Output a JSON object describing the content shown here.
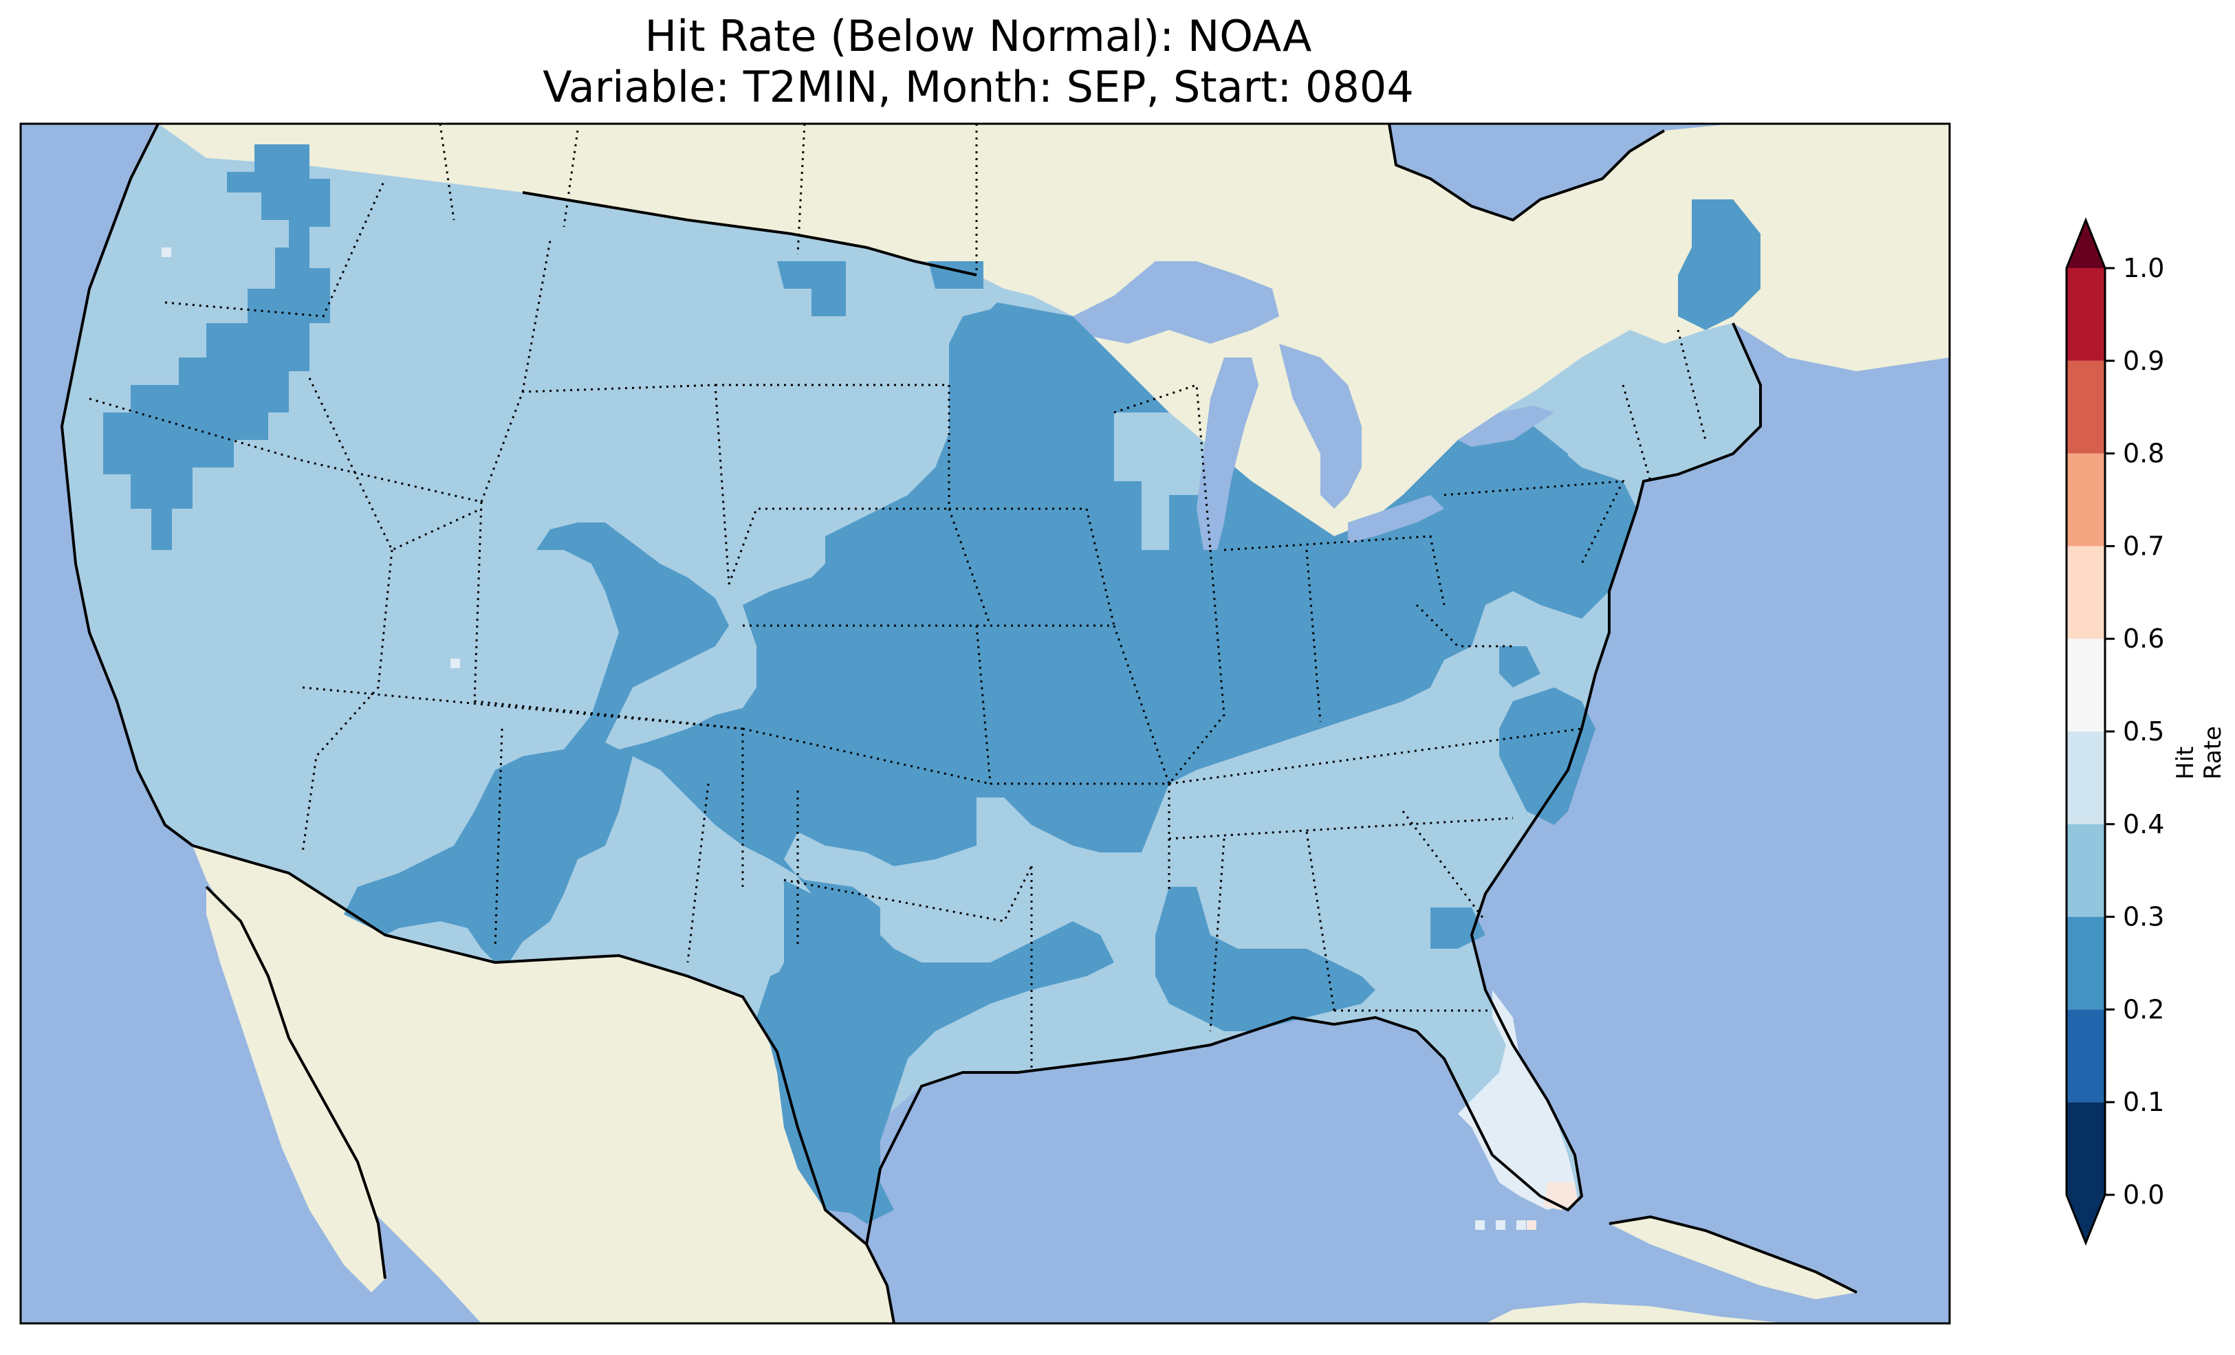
{
  "title": {
    "line1": "Hit Rate (Below Normal): NOAA",
    "line2": "Variable: T2MIN, Month: SEP, Start: 0804"
  },
  "colorbar": {
    "label": "Hit Rate",
    "ticks": [
      "0.0",
      "0.1",
      "0.2",
      "0.3",
      "0.4",
      "0.5",
      "0.6",
      "0.7",
      "0.8",
      "0.9",
      "1.0"
    ],
    "colors": [
      "#053061",
      "#2166ac",
      "#4393c3",
      "#92c5de",
      "#d1e5f0",
      "#f7f7f7",
      "#fddbc7",
      "#f4a582",
      "#d6604d",
      "#b2182b",
      "#67001f"
    ],
    "extend_low_color": "#053061",
    "extend_high_color": "#67001f"
  },
  "map_colors": {
    "ocean": "#97b6e1",
    "land": "#efefdb",
    "class_0_2_0_3": "#529bc9",
    "class_0_3_0_4": "#a8cee4",
    "class_0_4_0_5": "#e3edf5",
    "class_0_5_0_6": "#f9e7df"
  },
  "chart_data": {
    "type": "heatmap",
    "title": "Hit Rate (Below Normal): NOAA\nVariable: T2MIN, Month: SEP, Start: 0804",
    "colorbar_label": "Hit Rate",
    "value_range": [
      0.0,
      1.0
    ],
    "levels": [
      0.0,
      0.1,
      0.2,
      0.3,
      0.4,
      0.5,
      0.6,
      0.7,
      0.8,
      0.9,
      1.0
    ],
    "regions": [
      {
        "region": "Pacific Northwest / West / Northern Plains",
        "hit_rate_bin": "0.3-0.4"
      },
      {
        "region": "Central Plains / Midwest / Ohio Valley",
        "hit_rate_bin": "0.2-0.3"
      },
      {
        "region": "Southern Rockies / Texas",
        "hit_rate_bin": "0.2-0.3"
      },
      {
        "region": "Southeast / Gulf Coast",
        "hit_rate_bin": "0.3-0.4"
      },
      {
        "region": "Central / South Florida",
        "hit_rate_bin": "0.4-0.5"
      },
      {
        "region": "Southern tip of Florida",
        "hit_rate_bin": "0.5-0.6"
      }
    ]
  }
}
